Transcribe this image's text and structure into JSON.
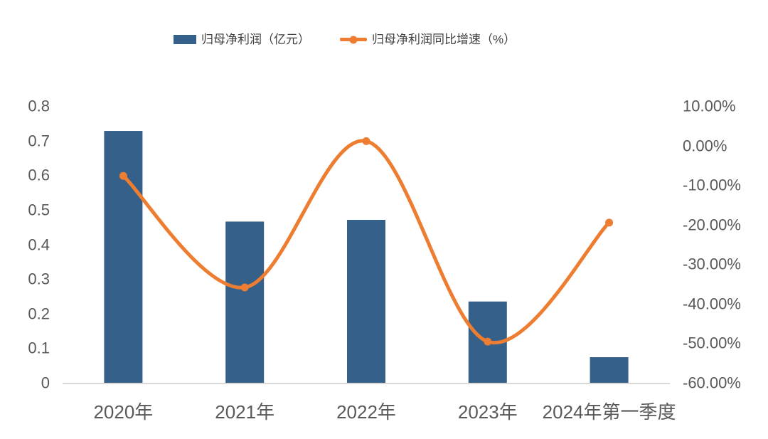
{
  "chart_data": {
    "type": "combo",
    "title": "",
    "categories": [
      "2020年",
      "2021年",
      "2022年",
      "2023年",
      "2024年第一季度"
    ],
    "series": [
      {
        "name": "归母净利润（亿元）",
        "type": "bar",
        "axis": "left",
        "color": "#34608A",
        "values": [
          0.73,
          0.468,
          0.473,
          0.237,
          0.076
        ]
      },
      {
        "name": "归母净利润同比增速（%）",
        "type": "line",
        "axis": "right",
        "color": "#ED7D31",
        "values": [
          -7.5,
          -35.7,
          1.3,
          -49.4,
          -19.3
        ]
      }
    ],
    "left_axis": {
      "min": 0,
      "max": 0.8,
      "step": 0.1,
      "tick_labels": [
        "0.8",
        "0.7",
        "0.6",
        "0.5",
        "0.4",
        "0.3",
        "0.2",
        "0.1",
        "0"
      ]
    },
    "right_axis": {
      "min": -60,
      "max": 10,
      "step": 10,
      "tick_labels": [
        "10.00%",
        "0.00%",
        "-10.00%",
        "-20.00%",
        "-30.00%",
        "-40.00%",
        "-50.00%",
        "-60.00%"
      ]
    },
    "grid": false,
    "legend_position": "top",
    "styles": {
      "axis_label_color": "#595959",
      "legend_text_color": "#404040",
      "baseline_color": "#D9D9D9",
      "background": "#FFFFFF"
    }
  }
}
